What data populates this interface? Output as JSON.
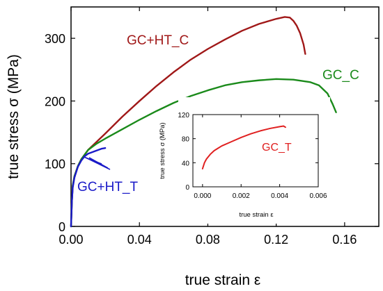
{
  "chart_data": [
    {
      "type": "line",
      "title": "",
      "xlabel": "true strain ε",
      "ylabel": "true stress σ (MPa)",
      "xlim": [
        0,
        0.18
      ],
      "ylim": [
        0,
        350
      ],
      "x_ticks": [
        "0.00",
        "0.04",
        "0.08",
        "0.12",
        "0.16"
      ],
      "y_ticks": [
        "0",
        "100",
        "200",
        "300"
      ],
      "x_tick_values": [
        0,
        0.04,
        0.08,
        0.12,
        0.16
      ],
      "y_tick_values": [
        0,
        100,
        200,
        300
      ],
      "grid": false,
      "annotations": [
        "GC+HT_C",
        "GC_C",
        "GC+HT_T"
      ],
      "series": [
        {
          "name": "GC+HT_C",
          "color": "#a01818",
          "points": [
            [
              0,
              0
            ],
            [
              0.0005,
              40
            ],
            [
              0.001,
              65
            ],
            [
              0.002,
              80
            ],
            [
              0.004,
              96
            ],
            [
              0.006,
              107
            ],
            [
              0.01,
              122
            ],
            [
              0.015,
              135
            ],
            [
              0.02,
              148
            ],
            [
              0.03,
              175
            ],
            [
              0.04,
              200
            ],
            [
              0.05,
              224
            ],
            [
              0.06,
              246
            ],
            [
              0.07,
              266
            ],
            [
              0.08,
              283
            ],
            [
              0.09,
              298
            ],
            [
              0.1,
              312
            ],
            [
              0.11,
              323
            ],
            [
              0.12,
              331
            ],
            [
              0.125,
              334
            ],
            [
              0.128,
              333
            ],
            [
              0.13,
              328
            ],
            [
              0.132,
              320
            ],
            [
              0.134,
              308
            ],
            [
              0.136,
              290
            ],
            [
              0.137,
              275
            ]
          ]
        },
        {
          "name": "GC_C",
          "color": "#1a8a1a",
          "points": [
            [
              0,
              0
            ],
            [
              0.0005,
              40
            ],
            [
              0.001,
              65
            ],
            [
              0.002,
              80
            ],
            [
              0.004,
              96
            ],
            [
              0.006,
              107
            ],
            [
              0.01,
              122
            ],
            [
              0.015,
              132
            ],
            [
              0.02,
              140
            ],
            [
              0.03,
              155
            ],
            [
              0.04,
              170
            ],
            [
              0.05,
              184
            ],
            [
              0.06,
              197
            ],
            [
              0.07,
              208
            ],
            [
              0.08,
              217
            ],
            [
              0.09,
              225
            ],
            [
              0.1,
              230
            ],
            [
              0.11,
              233
            ],
            [
              0.12,
              235
            ],
            [
              0.13,
              234
            ],
            [
              0.14,
              230
            ],
            [
              0.145,
              225
            ],
            [
              0.15,
              212
            ],
            [
              0.153,
              195
            ],
            [
              0.155,
              182
            ]
          ]
        },
        {
          "name": "GC+HT_T",
          "color": "#1a1ac8",
          "points": [
            [
              0,
              0
            ],
            [
              0.0005,
              40
            ],
            [
              0.001,
              62
            ],
            [
              0.002,
              78
            ],
            [
              0.004,
              95
            ],
            [
              0.006,
              105
            ],
            [
              0.008,
              112
            ],
            [
              0.01,
              116
            ],
            [
              0.014,
              120
            ],
            [
              0.018,
              124
            ],
            [
              0.02,
              125
            ]
          ]
        }
      ]
    },
    {
      "type": "line",
      "title": "",
      "xlabel": "true strain ε",
      "ylabel": "true stress σ (MPa)",
      "xlim": [
        -0.0005,
        0.006
      ],
      "ylim": [
        0,
        120
      ],
      "x_ticks": [
        "0.000",
        "0.002",
        "0.004",
        "0.006"
      ],
      "y_ticks": [
        "0",
        "40",
        "80",
        "120"
      ],
      "x_tick_values": [
        0,
        0.002,
        0.004,
        0.006
      ],
      "y_tick_values": [
        0,
        40,
        80,
        120
      ],
      "grid": false,
      "annotations": [
        "GC_T"
      ],
      "series": [
        {
          "name": "GC_T",
          "color": "#e02020",
          "points": [
            [
              0,
              30
            ],
            [
              0.0001,
              40
            ],
            [
              0.0002,
              46
            ],
            [
              0.0004,
              54
            ],
            [
              0.0006,
              60
            ],
            [
              0.0008,
              64
            ],
            [
              0.001,
              68
            ],
            [
              0.0015,
              75
            ],
            [
              0.002,
              82
            ],
            [
              0.0025,
              88
            ],
            [
              0.003,
              93
            ],
            [
              0.0035,
              97
            ],
            [
              0.004,
              100
            ],
            [
              0.0042,
              101
            ],
            [
              0.0043,
              99
            ]
          ]
        }
      ]
    }
  ]
}
